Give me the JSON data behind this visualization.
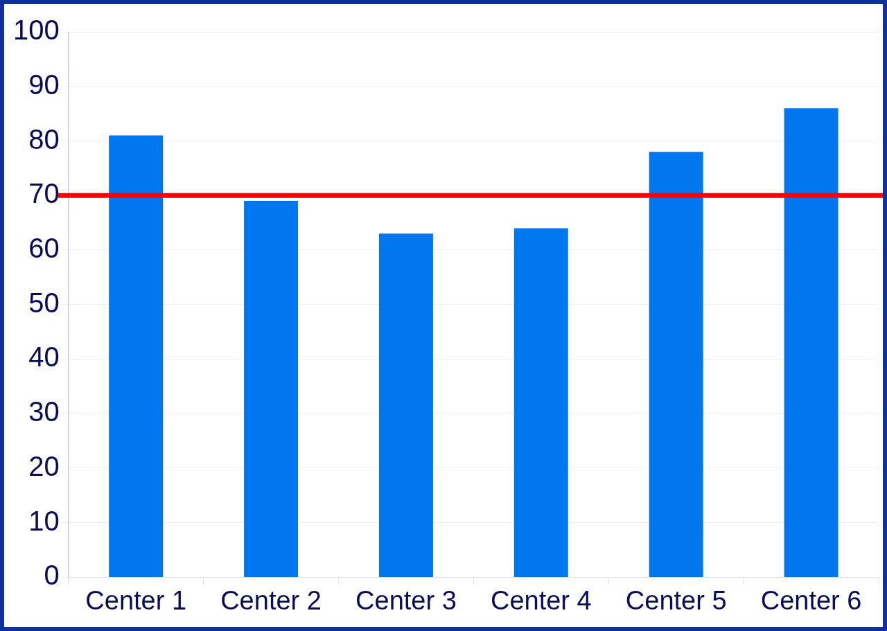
{
  "chart_data": {
    "type": "bar",
    "categories": [
      "Center 1",
      "Center 2",
      "Center 3",
      "Center 4",
      "Center 5",
      "Center 6"
    ],
    "values": [
      81,
      69,
      63,
      64,
      78,
      86
    ],
    "color": "#0077ee",
    "ylim": [
      0,
      100
    ],
    "yticks": [
      0,
      10,
      20,
      30,
      40,
      50,
      60,
      70,
      80,
      90,
      100
    ],
    "grid": "y",
    "legend": false,
    "ref_lines": [
      {
        "axis": "y",
        "value": 70,
        "color": "#ff0000",
        "line_style": "solid"
      }
    ]
  }
}
